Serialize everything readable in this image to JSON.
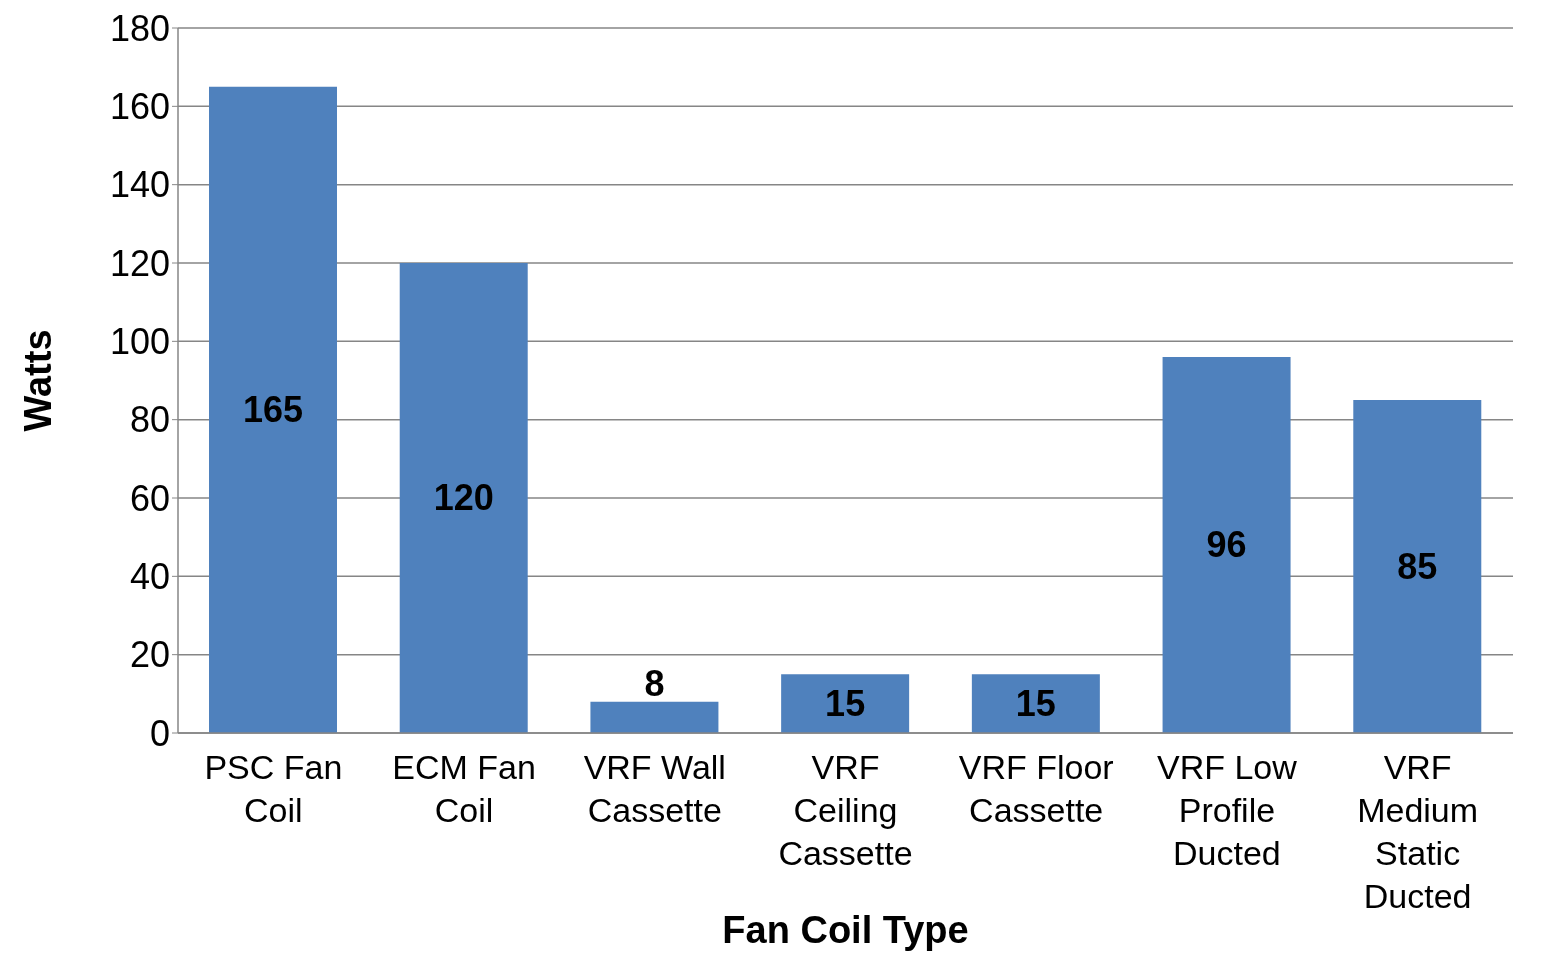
{
  "chart_data": {
    "type": "bar",
    "xlabel": "Fan Coil Type",
    "ylabel": "Watts",
    "categories": [
      "PSC Fan Coil",
      "ECM Fan Coil",
      "VRF Wall Cassette",
      "VRF Ceiling Cassette",
      "VRF Floor Cassette",
      "VRF Low Profile Ducted",
      "VRF Medium Static Ducted"
    ],
    "values": [
      165,
      120,
      8,
      15,
      15,
      96,
      85
    ],
    "color": "#4f81bd",
    "ylim": [
      0,
      180
    ],
    "yticks": [
      0,
      20,
      40,
      60,
      80,
      100,
      120,
      140,
      160,
      180
    ],
    "grid": "y",
    "data_labels": true
  }
}
